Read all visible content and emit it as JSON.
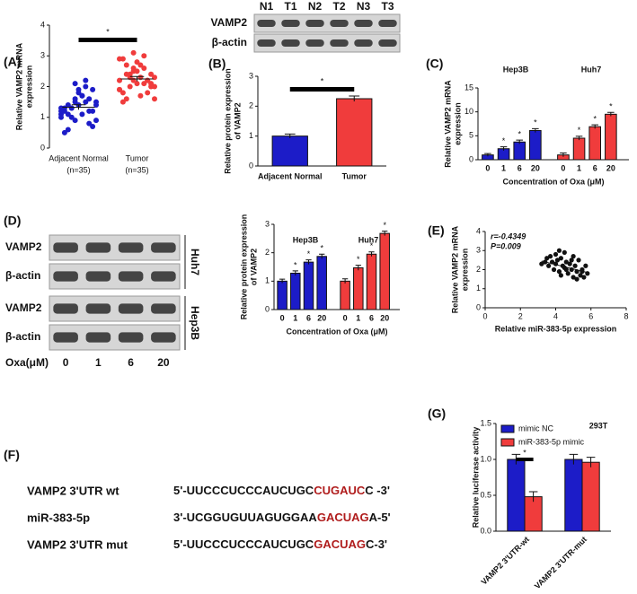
{
  "panel_labels": [
    "(A)",
    "(B)",
    "(C)",
    "(D)",
    "(E)",
    "(F)",
    "(G)"
  ],
  "blots": [
    {
      "lanes": [
        "N1",
        "T1",
        "N2",
        "T2",
        "N3",
        "T3"
      ],
      "rows": [
        "VAMP2",
        "β-actin"
      ]
    },
    {
      "lanes": [
        "0",
        "1",
        "6",
        "20"
      ],
      "lane_title": "Oxa(μM)",
      "rows": [
        "VAMP2",
        "β-actin",
        "VAMP2",
        "β-actin"
      ],
      "cell_lines": [
        "Huh7",
        "Hep3B"
      ]
    }
  ],
  "sequences": [
    {
      "label": "VAMP2 3'UTR wt",
      "parts": [
        "5'-UUCCCUCCCAUCUGC",
        "CUGAUC",
        "C -3'"
      ]
    },
    {
      "label": "miR-383-5p",
      "parts": [
        "3'-UCGGUGUUAGUGGAA",
        "GACUAG",
        "A-5'"
      ]
    },
    {
      "label": "VAMP2 3'UTR mut",
      "parts": [
        "5'-UUCCCUCCCAUCUGC",
        "GACUAG",
        "C-3'"
      ]
    }
  ],
  "chart_data": [
    {
      "type": "dot",
      "ylabel": [
        "Relative VAMP2 mRNA",
        "expression"
      ],
      "categories": [
        "Adjacent Normal",
        "Tumor"
      ],
      "category_notes": [
        "(n=35)",
        "(n=35)"
      ],
      "groups": [
        {
          "color": "#1c1cc8",
          "mean": 1.33,
          "error": 0.08,
          "values": [
            1.1,
            1.5,
            0.8,
            1.3,
            1.9,
            1.2,
            0.6,
            1.7,
            1.4,
            1.0,
            2.0,
            1.3,
            0.9,
            1.6,
            1.2,
            1.8,
            0.7,
            1.4,
            1.1,
            1.5,
            1.3,
            2.2,
            1.0,
            1.6,
            1.2,
            0.5,
            1.4,
            1.9,
            1.1,
            1.7,
            0.9,
            1.3,
            1.5,
            1.2,
            2.1
          ]
        },
        {
          "color": "#f03c3c",
          "mean": 2.25,
          "error": 0.08,
          "values": [
            2.2,
            2.5,
            1.8,
            2.9,
            2.1,
            2.4,
            1.6,
            2.7,
            2.0,
            2.3,
            3.0,
            1.9,
            2.6,
            2.2,
            1.5,
            2.8,
            2.1,
            2.4,
            1.7,
            2.3,
            2.0,
            2.6,
            1.9,
            3.1,
            2.2,
            1.8,
            2.5,
            2.0,
            2.7,
            2.3,
            1.6,
            2.4,
            2.1,
            2.9,
            2.2
          ]
        }
      ],
      "significance": "*",
      "ylim": [
        0,
        4
      ],
      "yticks": [
        0,
        1,
        2,
        3,
        4
      ]
    },
    {
      "type": "bar",
      "ylabel": [
        "Relative protein expression",
        "of VAMP2"
      ],
      "categories": [
        "Adjacent Normal",
        "Tumor"
      ],
      "values": [
        1.0,
        2.25
      ],
      "errors": [
        0.07,
        0.09
      ],
      "colors": [
        "#1c1cc8",
        "#f03c3c"
      ],
      "significance": "*",
      "ylim": [
        0,
        3
      ],
      "yticks": [
        0,
        1,
        2,
        3
      ]
    },
    {
      "type": "grouped",
      "ylabel": [
        "Relative VAMP2 mRNA",
        "expression"
      ],
      "xlabel": "Concentration of Oxa (μM)",
      "groups": [
        "Hep3B",
        "Huh7"
      ],
      "categories": [
        "0",
        "1",
        "6",
        "20"
      ],
      "significance_label": "*",
      "series": [
        {
          "color": "#1c1cc8",
          "values": [
            1.0,
            2.3,
            3.7,
            6.1
          ],
          "errors": [
            0.3,
            0.4,
            0.4,
            0.4
          ],
          "significant": [
            false,
            true,
            true,
            true
          ]
        },
        {
          "color": "#f03c3c",
          "values": [
            1.0,
            4.5,
            6.9,
            9.5
          ],
          "errors": [
            0.4,
            0.4,
            0.4,
            0.4
          ],
          "significant": [
            false,
            true,
            true,
            true
          ]
        }
      ],
      "ylim": [
        0,
        15
      ],
      "yticks": [
        0,
        5,
        10,
        15
      ]
    },
    {
      "type": "grouped",
      "ylabel": [
        "Relative protein expression",
        "of VAMP2"
      ],
      "xlabel": "Concentration of Oxa (μM)",
      "groups": [
        "Hep3B",
        "Huh7"
      ],
      "categories": [
        "0",
        "1",
        "6",
        "20"
      ],
      "significance_label": "*",
      "series": [
        {
          "color": "#1c1cc8",
          "values": [
            1.0,
            1.28,
            1.67,
            1.87
          ],
          "errors": [
            0.07,
            0.08,
            0.08,
            0.08
          ],
          "significant": [
            false,
            true,
            true,
            true
          ]
        },
        {
          "color": "#f03c3c",
          "values": [
            1.0,
            1.47,
            1.95,
            2.68
          ],
          "errors": [
            0.08,
            0.09,
            0.08,
            0.08
          ],
          "significant": [
            false,
            true,
            true,
            true
          ]
        }
      ],
      "ylim": [
        0,
        3
      ],
      "yticks": [
        0,
        1,
        2,
        3
      ]
    },
    {
      "type": "scatter",
      "ylabel": [
        "Relative VAMP2 mRNA",
        "expression"
      ],
      "xlabel": "Relative miR-383-5p expression",
      "annotations": [
        "r=-0.4349",
        "P=0.009"
      ],
      "color": "#111111",
      "x": [
        3.2,
        3.5,
        3.6,
        3.8,
        3.9,
        4.0,
        4.1,
        4.2,
        4.3,
        4.4,
        4.5,
        4.5,
        4.6,
        4.7,
        4.8,
        4.9,
        5.0,
        5.0,
        5.1,
        5.2,
        5.3,
        5.4,
        5.5,
        5.6,
        5.7,
        5.8,
        3.4,
        3.7,
        4.0,
        4.3,
        4.6,
        4.9,
        5.2,
        5.5,
        4.2
      ],
      "y": [
        2.3,
        2.6,
        2.2,
        2.4,
        2.0,
        2.8,
        2.5,
        1.9,
        2.6,
        2.2,
        2.9,
        2.1,
        2.4,
        1.8,
        2.3,
        2.0,
        2.7,
        1.6,
        2.2,
        1.9,
        2.5,
        1.7,
        2.0,
        1.6,
        2.2,
        1.8,
        2.4,
        2.7,
        2.3,
        1.7,
        2.0,
        2.5,
        1.5,
        1.9,
        3.0
      ],
      "fit": {
        "x": [
          3.2,
          5.8
        ],
        "y": [
          2.45,
          1.85
        ]
      },
      "xlim": [
        0,
        8
      ],
      "xticks": [
        0,
        2,
        4,
        6,
        8
      ],
      "ylim": [
        0,
        4
      ],
      "yticks": [
        0,
        1,
        2,
        3,
        4
      ]
    },
    {
      "type": "bar",
      "title": "293T",
      "ylabel": [
        "Relative luciferase activity"
      ],
      "categories": [
        "VAMP2 3'UTR-wt",
        "VAMP2 3'UTR-mut"
      ],
      "series": [
        {
          "name": "mimic NC",
          "color": "#1c1cc8",
          "values": [
            1.0,
            1.0
          ],
          "errors": [
            0.07,
            0.07
          ]
        },
        {
          "name": "miR-383-5p mimic",
          "color": "#f03c3c",
          "values": [
            0.48,
            0.96
          ],
          "errors": [
            0.07,
            0.07
          ]
        }
      ],
      "significance": "*",
      "ylim": [
        0,
        1.5
      ],
      "yticks": [
        {
          "value": 0,
          "label": "0.0"
        },
        {
          "value": 0.5,
          "label": "0.5"
        },
        {
          "value": 1,
          "label": "1.0"
        },
        {
          "value": 1.5,
          "label": "1.5"
        }
      ]
    }
  ]
}
